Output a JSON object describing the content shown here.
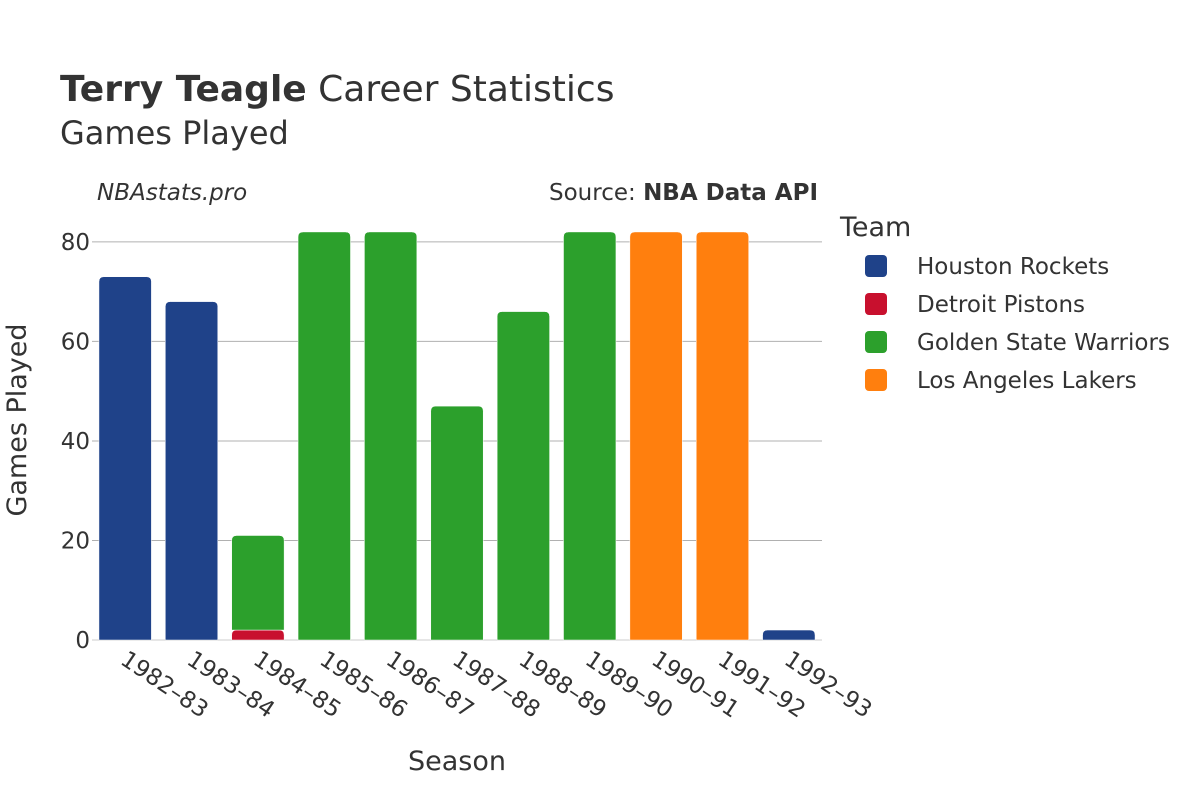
{
  "header": {
    "title_name": "Terry Teagle",
    "title_rest": " Career Statistics",
    "subtitle": "Games Played"
  },
  "annotations": {
    "site": "NBAstats.pro",
    "source_prefix": "Source: ",
    "source_name": "NBA Data API"
  },
  "legend": {
    "title": "Team"
  },
  "chart_data": {
    "type": "bar",
    "stacked": true,
    "title": "Terry Teagle Career Statistics",
    "subtitle": "Games Played",
    "xlabel": "Season",
    "ylabel": "Games Played",
    "ylim": [
      0,
      84
    ],
    "yticks": [
      0,
      20,
      40,
      60,
      80
    ],
    "grid": true,
    "legend_position": "right",
    "categories": [
      "1982–83",
      "1983–84",
      "1984–85",
      "1985–86",
      "1986–87",
      "1987–88",
      "1988–89",
      "1989–90",
      "1990–91",
      "1991–92",
      "1992–93"
    ],
    "series": [
      {
        "name": "Houston Rockets",
        "color": "#1f4289",
        "values": [
          73,
          68,
          0,
          0,
          0,
          0,
          0,
          0,
          0,
          0,
          2
        ]
      },
      {
        "name": "Detroit Pistons",
        "color": "#c8102e",
        "values": [
          0,
          0,
          2,
          0,
          0,
          0,
          0,
          0,
          0,
          0,
          0
        ]
      },
      {
        "name": "Golden State Warriors",
        "color": "#2ca02c",
        "values": [
          0,
          0,
          19,
          82,
          82,
          47,
          66,
          82,
          0,
          0,
          0
        ]
      },
      {
        "name": "Los Angeles Lakers",
        "color": "#ff7f0e",
        "values": [
          0,
          0,
          0,
          0,
          0,
          0,
          0,
          0,
          82,
          82,
          0
        ]
      }
    ]
  }
}
